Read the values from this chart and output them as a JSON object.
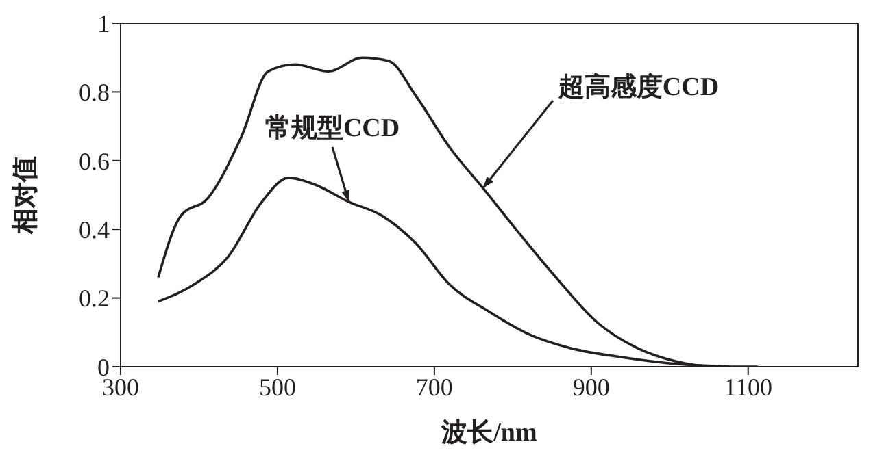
{
  "chart_data": {
    "type": "line",
    "xlabel": "波长/nm",
    "ylabel": "相对值",
    "xlim": [
      300,
      1240
    ],
    "xticks": [
      300,
      500,
      700,
      900,
      1100
    ],
    "ylim": [
      0,
      1
    ],
    "yticks": [
      0,
      0.2,
      0.4,
      0.6,
      0.8,
      1
    ],
    "grid": false,
    "legend": false,
    "marker": "none",
    "line_style": "solid",
    "series": [
      {
        "color": "#231f20",
        "x": [
          348,
          377,
          411,
          454,
          488,
          522,
          565,
          608,
          642,
          676,
          719,
          762,
          804,
          855,
          907,
          958,
          1009,
          1060,
          1112
        ],
        "values": [
          0.26,
          0.44,
          0.49,
          0.67,
          0.86,
          0.88,
          0.86,
          0.9,
          0.89,
          0.79,
          0.64,
          0.52,
          0.4,
          0.26,
          0.13,
          0.055,
          0.015,
          0,
          0
        ]
      },
      {
        "color": "#231f20",
        "x": [
          348,
          394,
          437,
          480,
          514,
          548,
          591,
          633,
          676,
          719,
          770,
          821,
          872,
          941,
          1009,
          1077
        ],
        "values": [
          0.19,
          0.24,
          0.32,
          0.48,
          0.55,
          0.53,
          0.48,
          0.44,
          0.36,
          0.24,
          0.16,
          0.094,
          0.055,
          0.027,
          0.008,
          0
        ]
      }
    ],
    "annotations": [
      {
        "text": "超高感度CCD",
        "x": 762,
        "y": 0.52
      },
      {
        "text": "常规型CCD",
        "x": 591,
        "y": 0.48
      }
    ]
  }
}
